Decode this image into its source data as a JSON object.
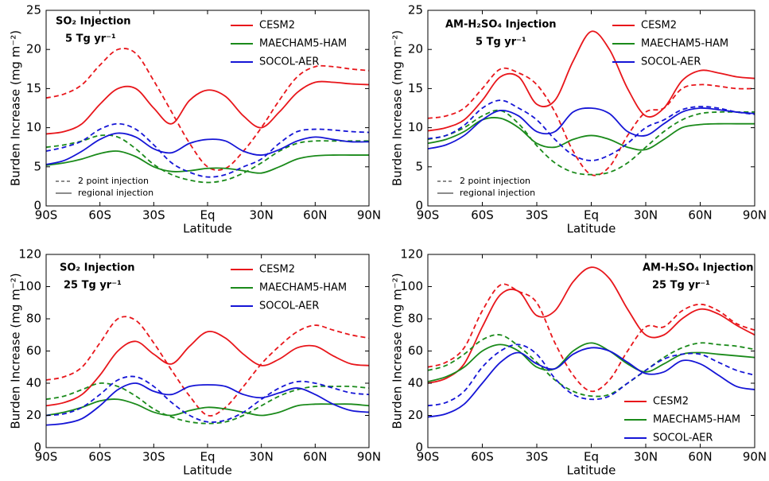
{
  "chart_data": [
    {
      "type": "line",
      "title": "SO₂ Injection",
      "subtitle": "5 Tg yr⁻¹",
      "xlabel": "Latitude",
      "ylabel": "Burden Increase (mg m⁻²)",
      "x": [
        -90,
        -80,
        -70,
        -60,
        -50,
        -40,
        -30,
        -20,
        -10,
        0,
        10,
        20,
        30,
        40,
        50,
        60,
        70,
        80,
        90
      ],
      "xlim": [
        -90,
        90
      ],
      "xticks": [
        {
          "value": -90,
          "label": "90S"
        },
        {
          "value": -60,
          "label": "60S"
        },
        {
          "value": -30,
          "label": "30S"
        },
        {
          "value": 0,
          "label": "Eq"
        },
        {
          "value": 30,
          "label": "30N"
        },
        {
          "value": 60,
          "label": "60N"
        },
        {
          "value": 90,
          "label": "90N"
        }
      ],
      "ylim": [
        0,
        25
      ],
      "yticks": [
        0,
        5,
        10,
        15,
        20,
        25
      ],
      "legend": "upper right",
      "style_legend": [
        "2 point injection",
        "regional injection"
      ],
      "series": [
        {
          "name": "CESM2",
          "color": "#e8161b",
          "values": [
            9.2,
            9.5,
            10.5,
            13,
            15,
            15,
            12.5,
            10.5,
            13.5,
            14.8,
            14,
            11.5,
            10,
            12,
            14.5,
            15.8,
            15.8,
            15.6,
            15.5
          ],
          "values_2pt": [
            13.8,
            14.3,
            15.5,
            18,
            20,
            19.5,
            16,
            12,
            8,
            5,
            4.8,
            7,
            10,
            13.5,
            16.5,
            17.8,
            17.8,
            17.5,
            17.3
          ]
        },
        {
          "name": "MAECHAM5-HAM",
          "color": "#1a8a1a",
          "values": [
            5.2,
            5.5,
            6,
            6.7,
            7,
            6.3,
            5,
            4.4,
            4.5,
            4.8,
            4.8,
            4.5,
            4.2,
            5,
            6,
            6.4,
            6.5,
            6.5,
            6.5
          ],
          "values_2pt": [
            7.5,
            7.8,
            8.3,
            9,
            8.8,
            7.3,
            5.3,
            4,
            3.3,
            3,
            3.3,
            4.2,
            5.5,
            7,
            8,
            8.3,
            8.3,
            8.3,
            8.3
          ]
        },
        {
          "name": "SOCOL-AER",
          "color": "#1515d6",
          "values": [
            5.3,
            5.8,
            7,
            8.5,
            9.3,
            8.8,
            7.3,
            6.8,
            8,
            8.5,
            8.3,
            7,
            6.5,
            7.2,
            8.3,
            8.8,
            8.5,
            8.2,
            8.2
          ],
          "values_2pt": [
            7,
            7.5,
            8.3,
            9.8,
            10.5,
            9.8,
            7.8,
            5.5,
            4.3,
            3.7,
            4,
            5,
            6,
            8,
            9.5,
            9.8,
            9.7,
            9.5,
            9.4
          ]
        }
      ]
    },
    {
      "type": "line",
      "title": "AM-H₂SO₄ Injection",
      "subtitle": "5 Tg yr⁻¹",
      "xlabel": "Latitude",
      "ylabel": "Burden Increase (mg m⁻²)",
      "x": [
        -90,
        -80,
        -70,
        -60,
        -50,
        -40,
        -30,
        -20,
        -10,
        0,
        10,
        20,
        30,
        40,
        50,
        60,
        70,
        80,
        90
      ],
      "xlim": [
        -90,
        90
      ],
      "xticks": [
        {
          "value": -90,
          "label": "90S"
        },
        {
          "value": -60,
          "label": "60S"
        },
        {
          "value": -30,
          "label": "30S"
        },
        {
          "value": 0,
          "label": "Eq"
        },
        {
          "value": 30,
          "label": "30N"
        },
        {
          "value": 60,
          "label": "60N"
        },
        {
          "value": 90,
          "label": "90N"
        }
      ],
      "ylim": [
        0,
        25
      ],
      "yticks": [
        0,
        5,
        10,
        15,
        20,
        25
      ],
      "legend": "upper right",
      "style_legend": [
        "2 point injection",
        "regional injection"
      ],
      "series": [
        {
          "name": "CESM2",
          "color": "#e8161b",
          "values": [
            9.6,
            10,
            11,
            13.5,
            16.5,
            16.5,
            13,
            13.5,
            18.5,
            22.3,
            20,
            15,
            11.5,
            12.5,
            16,
            17.3,
            17,
            16.5,
            16.3
          ],
          "values_2pt": [
            11.2,
            11.5,
            12.5,
            15,
            17.5,
            17,
            15.5,
            12,
            7,
            4,
            5,
            9,
            12,
            12.5,
            15,
            15.5,
            15.3,
            15,
            15
          ]
        },
        {
          "name": "MAECHAM5-HAM",
          "color": "#1a8a1a",
          "values": [
            8,
            8.5,
            9.5,
            11,
            11.2,
            10,
            8,
            7.5,
            8.5,
            9,
            8.5,
            7.5,
            7.2,
            8.5,
            10,
            10.4,
            10.5,
            10.5,
            10.5
          ],
          "values_2pt": [
            8.5,
            9,
            10,
            11.5,
            12.2,
            10.5,
            7.7,
            5.5,
            4.3,
            4,
            4.3,
            5.5,
            7.5,
            9.5,
            11,
            11.8,
            12,
            12,
            12
          ]
        },
        {
          "name": "SOCOL-AER",
          "color": "#1515d6",
          "values": [
            7.3,
            7.8,
            9,
            11,
            12.2,
            11.5,
            9.5,
            9.5,
            12,
            12.5,
            11.8,
            9.5,
            9,
            10.5,
            12,
            12.5,
            12.3,
            12,
            11.8
          ],
          "values_2pt": [
            8.6,
            9,
            10.3,
            12.5,
            13.5,
            12.5,
            11,
            8.5,
            6.5,
            5.8,
            6.5,
            8,
            10,
            11,
            12.3,
            12.7,
            12.5,
            12,
            11.7
          ]
        }
      ]
    },
    {
      "type": "line",
      "title": "SO₂ Injection",
      "subtitle": "25 Tg yr⁻¹",
      "xlabel": "Latitude",
      "ylabel": "Burden Increase (mg m⁻²)",
      "x": [
        -90,
        -80,
        -70,
        -60,
        -50,
        -40,
        -30,
        -20,
        -10,
        0,
        10,
        20,
        30,
        40,
        50,
        60,
        70,
        80,
        90
      ],
      "xlim": [
        -90,
        90
      ],
      "xticks": [
        {
          "value": -90,
          "label": "90S"
        },
        {
          "value": -60,
          "label": "60S"
        },
        {
          "value": -30,
          "label": "30S"
        },
        {
          "value": 0,
          "label": "Eq"
        },
        {
          "value": 30,
          "label": "30N"
        },
        {
          "value": 60,
          "label": "60N"
        },
        {
          "value": 90,
          "label": "90N"
        }
      ],
      "ylim": [
        0,
        120
      ],
      "yticks": [
        0,
        20,
        40,
        60,
        80,
        100,
        120
      ],
      "legend": "upper right",
      "series": [
        {
          "name": "CESM2",
          "color": "#e8161b",
          "values": [
            26,
            28,
            33,
            45,
            60,
            66,
            58,
            52,
            63,
            72,
            68,
            58,
            51,
            55,
            62,
            63,
            57,
            52,
            51
          ],
          "values_2pt": [
            42,
            44,
            50,
            65,
            80,
            79,
            65,
            48,
            32,
            20,
            25,
            38,
            52,
            63,
            72,
            76,
            73,
            70,
            68
          ]
        },
        {
          "name": "MAECHAM5-HAM",
          "color": "#1a8a1a",
          "values": [
            20,
            22,
            25,
            29,
            30,
            27,
            22,
            20,
            23,
            25,
            24,
            22,
            20,
            22,
            26,
            27,
            27,
            27,
            26
          ],
          "values_2pt": [
            30,
            32,
            36,
            40,
            38,
            32,
            24,
            19,
            16,
            15,
            16,
            20,
            26,
            32,
            36,
            38,
            38,
            38,
            37
          ]
        },
        {
          "name": "SOCOL-AER",
          "color": "#1515d6",
          "values": [
            14,
            15,
            18,
            26,
            36,
            40,
            35,
            33,
            38,
            39,
            38,
            33,
            31,
            34,
            37,
            33,
            27,
            23,
            22
          ],
          "values_2pt": [
            20,
            21,
            25,
            33,
            42,
            44,
            38,
            28,
            20,
            16,
            17,
            22,
            30,
            37,
            41,
            40,
            37,
            34,
            33
          ]
        }
      ]
    },
    {
      "type": "line",
      "title": "AM-H₂SO₄ Injection",
      "subtitle": "25 Tg yr⁻¹",
      "xlabel": "Latitude",
      "ylabel": "Burden Increase (mg m⁻²)",
      "x": [
        -90,
        -80,
        -70,
        -60,
        -50,
        -40,
        -30,
        -20,
        -10,
        0,
        10,
        20,
        30,
        40,
        50,
        60,
        70,
        80,
        90
      ],
      "xlim": [
        -90,
        90
      ],
      "xticks": [
        {
          "value": -90,
          "label": "90S"
        },
        {
          "value": -60,
          "label": "60S"
        },
        {
          "value": -30,
          "label": "30S"
        },
        {
          "value": 0,
          "label": "Eq"
        },
        {
          "value": 30,
          "label": "30N"
        },
        {
          "value": 60,
          "label": "60N"
        },
        {
          "value": 90,
          "label": "90N"
        }
      ],
      "ylim": [
        0,
        120
      ],
      "yticks": [
        0,
        20,
        40,
        60,
        80,
        100,
        120
      ],
      "legend": "lower right",
      "series": [
        {
          "name": "CESM2",
          "color": "#e8161b",
          "values": [
            40,
            43,
            52,
            75,
            95,
            97,
            82,
            85,
            103,
            112,
            105,
            86,
            70,
            70,
            80,
            86,
            83,
            76,
            70
          ],
          "values_2pt": [
            50,
            53,
            62,
            85,
            101,
            97,
            90,
            65,
            45,
            35,
            42,
            60,
            75,
            75,
            85,
            89,
            85,
            77,
            73
          ]
        },
        {
          "name": "MAECHAM5-HAM",
          "color": "#1a8a1a",
          "values": [
            41,
            44,
            50,
            60,
            64,
            60,
            50,
            49,
            60,
            65,
            60,
            52,
            47,
            52,
            58,
            59,
            58,
            57,
            56
          ],
          "values_2pt": [
            48,
            51,
            58,
            67,
            70,
            63,
            53,
            42,
            35,
            32,
            33,
            40,
            48,
            56,
            62,
            65,
            64,
            63,
            61
          ]
        },
        {
          "name": "SOCOL-AER",
          "color": "#1515d6",
          "values": [
            19,
            21,
            27,
            40,
            53,
            59,
            52,
            49,
            58,
            62,
            60,
            53,
            46,
            47,
            54,
            52,
            45,
            38,
            36
          ],
          "values_2pt": [
            26,
            28,
            35,
            50,
            60,
            64,
            58,
            43,
            33,
            30,
            32,
            40,
            48,
            55,
            58,
            58,
            53,
            48,
            45
          ]
        }
      ]
    }
  ]
}
